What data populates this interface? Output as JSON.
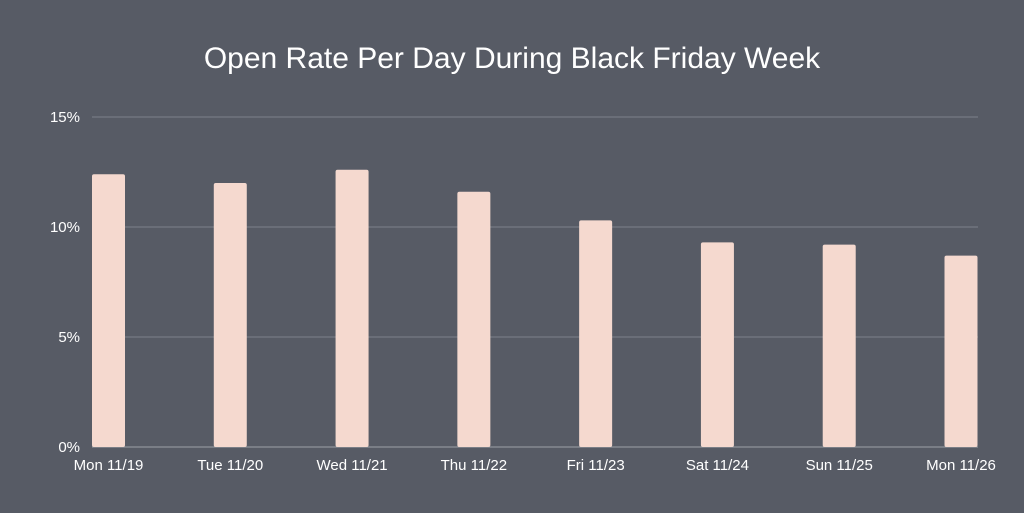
{
  "chart_data": {
    "type": "bar",
    "title": "Open Rate Per Day During Black Friday Week",
    "xlabel": "",
    "ylabel": "",
    "categories": [
      "Mon 11/19",
      "Tue 11/20",
      "Wed 11/21",
      "Thu 11/22",
      "Fri 11/23",
      "Sat 11/24",
      "Sun 11/25",
      "Mon 11/26"
    ],
    "values": [
      12.4,
      12.0,
      12.6,
      11.6,
      10.3,
      9.3,
      9.2,
      8.7
    ],
    "ylim": [
      0,
      15
    ],
    "yticks": [
      0,
      5,
      10,
      15
    ],
    "ytick_labels": [
      "0%",
      "5%",
      "10%",
      "15%"
    ],
    "grid": true,
    "legend": "none",
    "bar_color": "#f5d9cf",
    "background_color": "#575b65"
  }
}
